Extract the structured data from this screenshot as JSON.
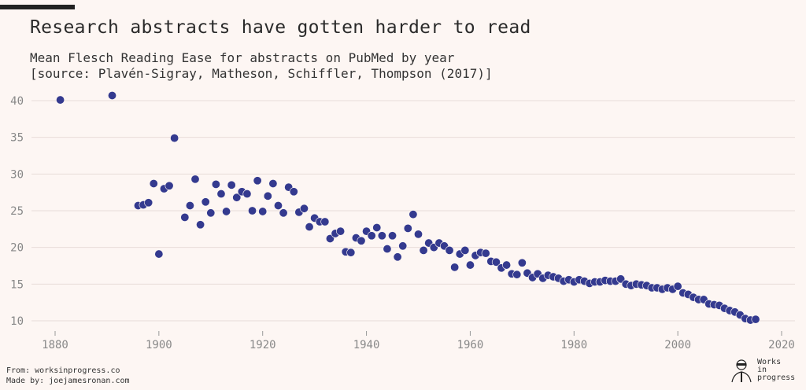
{
  "title": "Research abstracts have gotten harder to read",
  "subtitle": "Mean Flesch Reading Ease for abstracts on PubMed by year",
  "source": "[source: Plavén-Sigray, Matheson, Schiffler, Thompson (2017)]",
  "footer": {
    "from": "From: worksinprogress.co",
    "made_by": "Made by: joejamesronan.com"
  },
  "logo": {
    "text": "Works\nin\nprogress"
  },
  "colors": {
    "point": "#343a8f",
    "grid": "#e8dcd8",
    "axis_text": "#888888"
  },
  "chart_data": {
    "type": "scatter",
    "title": "Research abstracts have gotten harder to read",
    "xlabel": "",
    "ylabel": "",
    "xlim": [
      1875,
      2022
    ],
    "ylim": [
      8.5,
      41.5
    ],
    "xticks": [
      1880,
      1900,
      1920,
      1940,
      1960,
      1980,
      2000,
      2020
    ],
    "yticks": [
      10,
      15,
      20,
      25,
      30,
      35,
      40
    ],
    "grid": true,
    "x": [
      1881,
      1891,
      1896,
      1897,
      1898,
      1899,
      1900,
      1901,
      1902,
      1903,
      1905,
      1906,
      1907,
      1908,
      1909,
      1910,
      1911,
      1912,
      1913,
      1914,
      1915,
      1916,
      1917,
      1918,
      1919,
      1920,
      1921,
      1922,
      1923,
      1924,
      1925,
      1926,
      1927,
      1928,
      1929,
      1930,
      1931,
      1932,
      1933,
      1934,
      1935,
      1936,
      1937,
      1938,
      1939,
      1940,
      1941,
      1942,
      1943,
      1944,
      1945,
      1946,
      1947,
      1948,
      1949,
      1950,
      1951,
      1952,
      1953,
      1954,
      1955,
      1956,
      1957,
      1958,
      1959,
      1960,
      1961,
      1962,
      1963,
      1964,
      1965,
      1966,
      1967,
      1968,
      1969,
      1970,
      1971,
      1972,
      1973,
      1974,
      1975,
      1976,
      1977,
      1978,
      1979,
      1980,
      1981,
      1982,
      1983,
      1984,
      1985,
      1986,
      1987,
      1988,
      1989,
      1990,
      1991,
      1992,
      1993,
      1994,
      1995,
      1996,
      1997,
      1998,
      1999,
      2000,
      2001,
      2002,
      2003,
      2004,
      2005,
      2006,
      2007,
      2008,
      2009,
      2010,
      2011,
      2012,
      2013,
      2014,
      2015
    ],
    "y": [
      40.1,
      40.7,
      25.7,
      25.8,
      26.1,
      28.7,
      19.1,
      28.0,
      28.4,
      34.9,
      24.1,
      25.7,
      29.3,
      23.1,
      26.2,
      24.7,
      28.6,
      27.3,
      24.9,
      28.5,
      26.8,
      27.6,
      27.3,
      25.0,
      29.1,
      24.9,
      27.0,
      28.7,
      25.7,
      24.7,
      28.2,
      27.6,
      24.8,
      25.3,
      22.8,
      24.0,
      23.5,
      23.5,
      21.2,
      21.9,
      22.2,
      19.4,
      19.3,
      21.3,
      20.9,
      22.2,
      21.6,
      22.7,
      21.6,
      19.8,
      21.6,
      18.7,
      20.2,
      22.6,
      24.5,
      21.8,
      19.6,
      20.6,
      20.0,
      20.6,
      20.2,
      19.6,
      17.3,
      19.1,
      19.6,
      17.6,
      18.9,
      19.3,
      19.2,
      18.1,
      18.0,
      17.2,
      17.6,
      16.4,
      16.3,
      17.9,
      16.5,
      15.9,
      16.4,
      15.8,
      16.2,
      16.0,
      15.8,
      15.4,
      15.6,
      15.3,
      15.6,
      15.4,
      15.1,
      15.3,
      15.3,
      15.5,
      15.4,
      15.4,
      15.7,
      15.0,
      14.8,
      15.0,
      14.9,
      14.8,
      14.5,
      14.5,
      14.3,
      14.5,
      14.3,
      14.7,
      13.8,
      13.6,
      13.2,
      12.9,
      12.9,
      12.3,
      12.2,
      12.1,
      11.7,
      11.4,
      11.2,
      10.8,
      10.3,
      10.1,
      10.2
    ]
  }
}
